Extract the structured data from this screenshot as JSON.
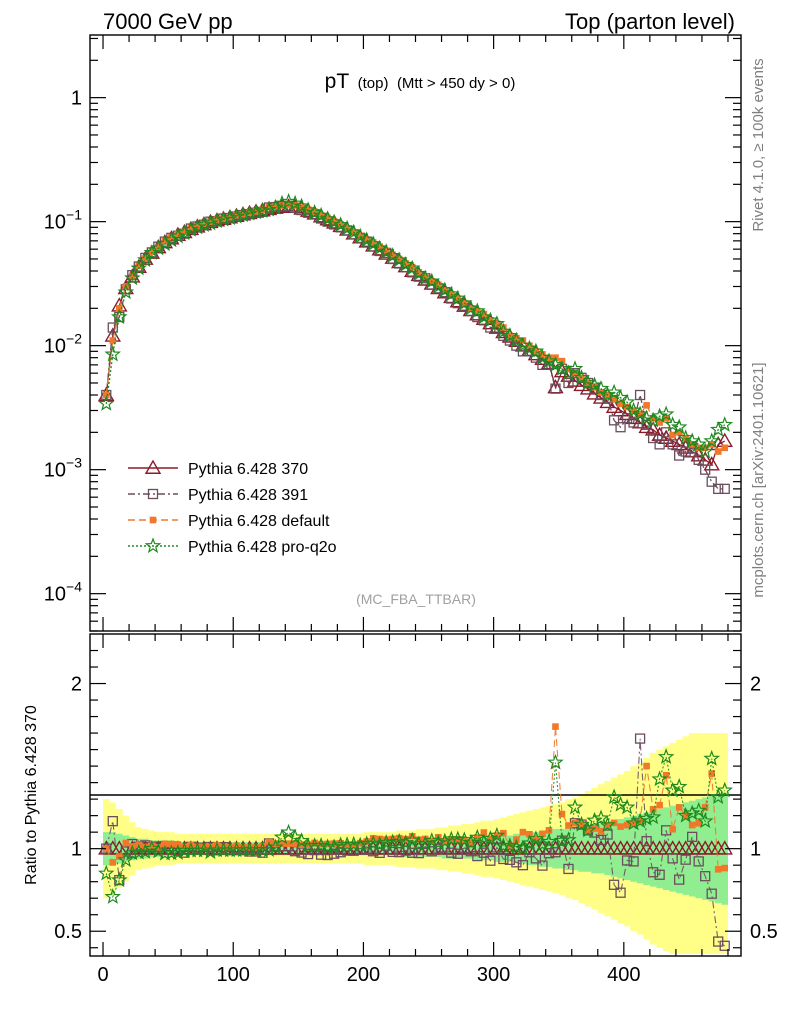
{
  "header": {
    "left": "7000 GeV pp",
    "right": "Top (parton level)"
  },
  "side_labels": {
    "rivet": "Rivet 4.1.0, ≥ 100k events",
    "mcplots": "mcplots.cern.ch [arXiv:2401.10621]"
  },
  "chart_data": {
    "type": "scatter",
    "title": "pT (top) (Mtt > 450 dy > 0)",
    "title_main": "pT",
    "title_sub": "(top)",
    "title_cut": "(Mtt > 450 dy > 0)",
    "watermark": "(MC_FBA_TTBAR)",
    "xlabel": "",
    "ylabel_ratio": "Ratio to Pythia 6.428 370",
    "xlim": [
      -10,
      490
    ],
    "ylim_main": [
      5e-05,
      3.2
    ],
    "ylim_ratio": [
      0.35,
      2.3
    ],
    "x_ticks": [
      "0",
      "100",
      "200",
      "300",
      "400"
    ],
    "y_ticks_main": [
      {
        "base": "10",
        "exp": "−4",
        "value": 0.0001
      },
      {
        "base": "10",
        "exp": "−3",
        "value": 0.001
      },
      {
        "base": "10",
        "exp": "−2",
        "value": 0.01
      },
      {
        "base": "10",
        "exp": "−1",
        "value": 0.1
      },
      {
        "base": "1",
        "exp": "",
        "value": 1
      }
    ],
    "y_ticks_ratio": [
      "0.5",
      "1",
      "2"
    ],
    "x": [
      2.5,
      7.5,
      12.5,
      17.5,
      22.5,
      27.5,
      32.5,
      37.5,
      42.5,
      47.5,
      52.5,
      57.5,
      62.5,
      67.5,
      72.5,
      77.5,
      82.5,
      87.5,
      92.5,
      97.5,
      102.5,
      107.5,
      112.5,
      117.5,
      122.5,
      127.5,
      132.5,
      137.5,
      142.5,
      147.5,
      152.5,
      157.5,
      162.5,
      167.5,
      172.5,
      177.5,
      182.5,
      187.5,
      192.5,
      197.5,
      202.5,
      207.5,
      212.5,
      217.5,
      222.5,
      227.5,
      232.5,
      237.5,
      242.5,
      247.5,
      252.5,
      257.5,
      262.5,
      267.5,
      272.5,
      277.5,
      282.5,
      287.5,
      292.5,
      297.5,
      302.5,
      307.5,
      312.5,
      317.5,
      322.5,
      327.5,
      332.5,
      337.5,
      342.5,
      347.5,
      352.5,
      357.5,
      362.5,
      367.5,
      372.5,
      377.5,
      382.5,
      387.5,
      392.5,
      397.5,
      402.5,
      407.5,
      412.5,
      417.5,
      422.5,
      427.5,
      432.5,
      437.5,
      442.5,
      447.5,
      452.5,
      457.5,
      462.5,
      467.5,
      472.5,
      477.5
    ],
    "series": [
      {
        "name": "Pythia 6.428 370",
        "color": "#8b1a2b",
        "marker": "triangle",
        "values": [
          0.004,
          0.012,
          0.021,
          0.029,
          0.036,
          0.043,
          0.05,
          0.056,
          0.062,
          0.068,
          0.073,
          0.078,
          0.082,
          0.087,
          0.091,
          0.095,
          0.099,
          0.102,
          0.105,
          0.108,
          0.111,
          0.114,
          0.117,
          0.12,
          0.123,
          0.126,
          0.129,
          0.131,
          0.132,
          0.131,
          0.127,
          0.122,
          0.116,
          0.11,
          0.104,
          0.098,
          0.092,
          0.086,
          0.08,
          0.0745,
          0.069,
          0.064,
          0.0595,
          0.055,
          0.051,
          0.047,
          0.0435,
          0.04,
          0.037,
          0.034,
          0.0315,
          0.029,
          0.0268,
          0.0246,
          0.0227,
          0.0209,
          0.0193,
          0.0178,
          0.0164,
          0.0151,
          0.0139,
          0.0128,
          0.0118,
          0.0109,
          0.01,
          0.0092,
          0.0085,
          0.0078,
          0.0072,
          0.0046,
          0.0062,
          0.0057,
          0.0052,
          0.0048,
          0.0045,
          0.0041,
          0.0038,
          0.0035,
          0.0032,
          0.003,
          0.0028,
          0.0026,
          0.0024,
          0.0022,
          0.0021,
          0.0019,
          0.0018,
          0.0017,
          0.0016,
          0.0015,
          0.0014,
          0.0013,
          0.0012,
          0.0011,
          0.0016,
          0.0017
        ]
      },
      {
        "name": "Pythia 6.428 391",
        "color": "#6b4e5e",
        "marker": "open-square",
        "values": [
          0.004,
          0.014,
          0.017,
          0.0285,
          0.037,
          0.0435,
          0.051,
          0.0565,
          0.0628,
          0.069,
          0.074,
          0.077,
          0.08,
          0.088,
          0.0915,
          0.0945,
          0.1,
          0.101,
          0.106,
          0.107,
          0.11,
          0.113,
          0.115,
          0.118,
          0.12,
          0.13,
          0.131,
          0.133,
          0.134,
          0.129,
          0.124,
          0.118,
          0.115,
          0.106,
          0.1,
          0.095,
          0.09,
          0.085,
          0.079,
          0.074,
          0.069,
          0.063,
          0.058,
          0.056,
          0.05,
          0.046,
          0.043,
          0.039,
          0.036,
          0.035,
          0.031,
          0.029,
          0.027,
          0.024,
          0.022,
          0.021,
          0.019,
          0.017,
          0.016,
          0.014,
          0.014,
          0.012,
          0.011,
          0.01,
          0.009,
          0.009,
          0.008,
          0.007,
          0.007,
          0.0045,
          0.0065,
          0.005,
          0.006,
          0.0055,
          0.005,
          0.0045,
          0.004,
          0.0038,
          0.0025,
          0.0022,
          0.0026,
          0.0024,
          0.004,
          0.0023,
          0.0018,
          0.0016,
          0.002,
          0.0016,
          0.0013,
          0.0014,
          0.0015,
          0.0012,
          0.001,
          0.0008,
          0.0007,
          0.0007
        ]
      },
      {
        "name": "Pythia 6.428 default",
        "color": "#f07828",
        "marker": "filled-square",
        "values": [
          0.004,
          0.011,
          0.02,
          0.03,
          0.0365,
          0.044,
          0.0505,
          0.057,
          0.0625,
          0.07,
          0.075,
          0.08,
          0.083,
          0.089,
          0.092,
          0.096,
          0.1,
          0.104,
          0.106,
          0.109,
          0.113,
          0.115,
          0.118,
          0.121,
          0.125,
          0.131,
          0.133,
          0.135,
          0.136,
          0.135,
          0.13,
          0.125,
          0.12,
          0.113,
          0.107,
          0.101,
          0.095,
          0.088,
          0.082,
          0.077,
          0.072,
          0.068,
          0.063,
          0.058,
          0.054,
          0.05,
          0.046,
          0.043,
          0.039,
          0.036,
          0.033,
          0.031,
          0.028,
          0.026,
          0.024,
          0.022,
          0.02,
          0.019,
          0.018,
          0.016,
          0.015,
          0.014,
          0.012,
          0.0115,
          0.011,
          0.01,
          0.009,
          0.0085,
          0.008,
          0.008,
          0.0075,
          0.0065,
          0.006,
          0.0055,
          0.005,
          0.0046,
          0.0042,
          0.004,
          0.0037,
          0.0034,
          0.0032,
          0.003,
          0.0028,
          0.0033,
          0.0026,
          0.0024,
          0.0026,
          0.0019,
          0.002,
          0.0018,
          0.0016,
          0.0015,
          0.0015,
          0.0016,
          0.0014,
          0.0015
        ]
      },
      {
        "name": "Pythia 6.428 pro-q2o",
        "color": "#1e8a1e",
        "marker": "star",
        "values": [
          0.0034,
          0.0085,
          0.017,
          0.027,
          0.035,
          0.042,
          0.049,
          0.056,
          0.061,
          0.066,
          0.071,
          0.076,
          0.081,
          0.086,
          0.09,
          0.094,
          0.097,
          0.101,
          0.104,
          0.107,
          0.11,
          0.113,
          0.116,
          0.119,
          0.122,
          0.125,
          0.13,
          0.14,
          0.145,
          0.14,
          0.133,
          0.124,
          0.118,
          0.112,
          0.105,
          0.099,
          0.094,
          0.088,
          0.082,
          0.076,
          0.071,
          0.066,
          0.061,
          0.057,
          0.053,
          0.049,
          0.045,
          0.042,
          0.038,
          0.035,
          0.033,
          0.03,
          0.028,
          0.026,
          0.024,
          0.022,
          0.02,
          0.019,
          0.017,
          0.016,
          0.015,
          0.013,
          0.012,
          0.011,
          0.01,
          0.0095,
          0.009,
          0.008,
          0.0075,
          0.007,
          0.0065,
          0.006,
          0.0065,
          0.0055,
          0.005,
          0.0048,
          0.0045,
          0.004,
          0.0042,
          0.0038,
          0.0035,
          0.003,
          0.0028,
          0.0026,
          0.0025,
          0.0027,
          0.0028,
          0.0023,
          0.0022,
          0.0018,
          0.0017,
          0.0016,
          0.0014,
          0.0017,
          0.0021,
          0.0023
        ]
      }
    ],
    "ratio_band": {
      "ref": "Pythia 6.428 370",
      "inner_color": "#90ee90",
      "outer_color": "#ffff88",
      "inner_halfwidth": [
        0.1,
        0.1,
        0.09,
        0.08,
        0.07,
        0.06,
        0.06,
        0.05,
        0.05,
        0.05,
        0.05,
        0.04,
        0.04,
        0.04,
        0.04,
        0.04,
        0.04,
        0.04,
        0.04,
        0.04,
        0.04,
        0.04,
        0.04,
        0.04,
        0.04,
        0.04,
        0.04,
        0.04,
        0.04,
        0.04,
        0.04,
        0.04,
        0.04,
        0.04,
        0.04,
        0.04,
        0.04,
        0.04,
        0.04,
        0.04,
        0.04,
        0.04,
        0.04,
        0.04,
        0.04,
        0.05,
        0.05,
        0.05,
        0.05,
        0.05,
        0.05,
        0.05,
        0.06,
        0.06,
        0.06,
        0.06,
        0.06,
        0.07,
        0.07,
        0.07,
        0.08,
        0.08,
        0.08,
        0.09,
        0.09,
        0.1,
        0.1,
        0.11,
        0.11,
        0.12,
        0.12,
        0.13,
        0.13,
        0.14,
        0.14,
        0.15,
        0.15,
        0.16,
        0.17,
        0.18,
        0.19,
        0.2,
        0.21,
        0.22,
        0.23,
        0.24,
        0.25,
        0.26,
        0.27,
        0.28,
        0.29,
        0.3,
        0.31,
        0.32,
        0.33,
        0.34
      ],
      "outer_halfwidth": [
        0.3,
        0.28,
        0.24,
        0.2,
        0.16,
        0.13,
        0.12,
        0.11,
        0.1,
        0.1,
        0.1,
        0.09,
        0.09,
        0.09,
        0.09,
        0.09,
        0.09,
        0.09,
        0.09,
        0.09,
        0.09,
        0.09,
        0.09,
        0.09,
        0.09,
        0.09,
        0.09,
        0.09,
        0.09,
        0.09,
        0.09,
        0.09,
        0.09,
        0.09,
        0.09,
        0.09,
        0.09,
        0.09,
        0.09,
        0.09,
        0.1,
        0.1,
        0.1,
        0.1,
        0.1,
        0.11,
        0.11,
        0.11,
        0.12,
        0.12,
        0.12,
        0.13,
        0.13,
        0.14,
        0.14,
        0.15,
        0.15,
        0.16,
        0.17,
        0.17,
        0.18,
        0.19,
        0.2,
        0.21,
        0.22,
        0.23,
        0.24,
        0.25,
        0.26,
        0.27,
        0.28,
        0.3,
        0.31,
        0.33,
        0.35,
        0.37,
        0.39,
        0.41,
        0.43,
        0.45,
        0.47,
        0.5,
        0.52,
        0.55,
        0.58,
        0.6,
        0.62,
        0.64,
        0.66,
        0.68,
        0.7,
        0.7,
        0.7,
        0.7,
        0.7,
        0.7
      ]
    }
  }
}
